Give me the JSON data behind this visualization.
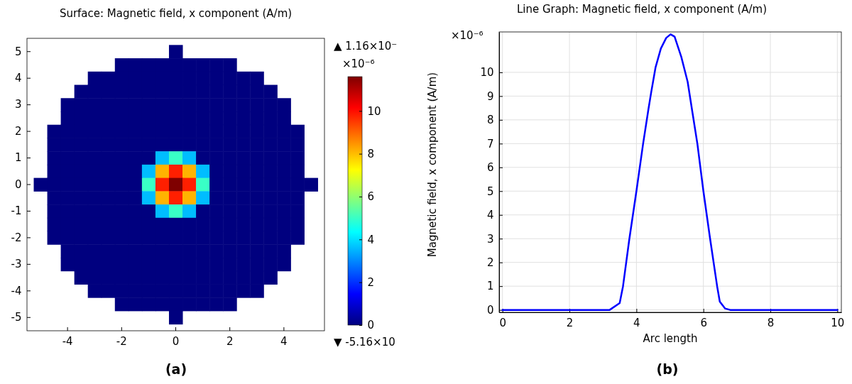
{
  "chart_data": [
    {
      "type": "heatmap",
      "title": "Surface: Magnetic field, x component (A/m)",
      "categories": [
        null,
        null,
        "-4",
        null,
        null,
        null,
        "-2",
        null,
        null,
        null,
        "0",
        null,
        null,
        null,
        "2",
        null,
        null,
        null,
        "4",
        null,
        null
      ],
      "y_categories": [
        "5",
        null,
        "4",
        null,
        "3",
        null,
        "2",
        null,
        "1",
        null,
        "0",
        null,
        "-1",
        null,
        "-2",
        null,
        "-3",
        null,
        "-4",
        null,
        "-5"
      ],
      "cells": [
        [
          null,
          null,
          null,
          null,
          null,
          null,
          null,
          null,
          null,
          null,
          0,
          null,
          null,
          null,
          null,
          null,
          null,
          null,
          null,
          null,
          null
        ],
        [
          null,
          null,
          null,
          null,
          null,
          null,
          0,
          0,
          0,
          0,
          0,
          0,
          0,
          0,
          0,
          null,
          null,
          null,
          null,
          null,
          null
        ],
        [
          null,
          null,
          null,
          null,
          0,
          0,
          0,
          0,
          0,
          0,
          0,
          0,
          0,
          0,
          0,
          0,
          0,
          null,
          null,
          null,
          null
        ],
        [
          null,
          null,
          null,
          0,
          0,
          0,
          0,
          0,
          0,
          0,
          0,
          0,
          0,
          0,
          0,
          0,
          0,
          0,
          null,
          null,
          null
        ],
        [
          null,
          null,
          0,
          0,
          0,
          0,
          0,
          0,
          0,
          0,
          0,
          0,
          0,
          0,
          0,
          0,
          0,
          0,
          0,
          null,
          null
        ],
        [
          null,
          null,
          0,
          0,
          0,
          0,
          0,
          0,
          0,
          0,
          0,
          0,
          0,
          0,
          0,
          0,
          0,
          0,
          0,
          null,
          null
        ],
        [
          null,
          0,
          0,
          0,
          0,
          0,
          0,
          0,
          0,
          0,
          0,
          0,
          0,
          0,
          0,
          0,
          0,
          0,
          0,
          0,
          null
        ],
        [
          null,
          0,
          0,
          0,
          0,
          0,
          0,
          0,
          0,
          0,
          0,
          0,
          0,
          0,
          0,
          0,
          0,
          0,
          0,
          0,
          null
        ],
        [
          null,
          0,
          0,
          0,
          0,
          0,
          0,
          0,
          0,
          3.6,
          5.0,
          3.6,
          0,
          0,
          0,
          0,
          0,
          0,
          0,
          0,
          null
        ],
        [
          null,
          0,
          0,
          0,
          0,
          0,
          0,
          0,
          3.6,
          8.1,
          9.8,
          8.1,
          3.6,
          0,
          0,
          0,
          0,
          0,
          0,
          0,
          null
        ],
        [
          0,
          0,
          0,
          0,
          0,
          0,
          0,
          0,
          5.0,
          9.8,
          11.6,
          9.8,
          5.0,
          0,
          0,
          0,
          0,
          0,
          0,
          0,
          0
        ],
        [
          null,
          0,
          0,
          0,
          0,
          0,
          0,
          0,
          3.6,
          8.1,
          9.8,
          8.1,
          3.6,
          0,
          0,
          0,
          0,
          0,
          0,
          0,
          null
        ],
        [
          null,
          0,
          0,
          0,
          0,
          0,
          0,
          0,
          0,
          3.6,
          5.0,
          3.6,
          0,
          0,
          0,
          0,
          0,
          0,
          0,
          0,
          null
        ],
        [
          null,
          0,
          0,
          0,
          0,
          0,
          0,
          0,
          0,
          0,
          0,
          0,
          0,
          0,
          0,
          0,
          0,
          0,
          0,
          0,
          null
        ],
        [
          null,
          0,
          0,
          0,
          0,
          0,
          0,
          0,
          0,
          0,
          0,
          0,
          0,
          0,
          0,
          0,
          0,
          0,
          0,
          0,
          null
        ],
        [
          null,
          null,
          0,
          0,
          0,
          0,
          0,
          0,
          0,
          0,
          0,
          0,
          0,
          0,
          0,
          0,
          0,
          0,
          0,
          null,
          null
        ],
        [
          null,
          null,
          0,
          0,
          0,
          0,
          0,
          0,
          0,
          0,
          0,
          0,
          0,
          0,
          0,
          0,
          0,
          0,
          0,
          null,
          null
        ],
        [
          null,
          null,
          null,
          0,
          0,
          0,
          0,
          0,
          0,
          0,
          0,
          0,
          0,
          0,
          0,
          0,
          0,
          0,
          null,
          null,
          null
        ],
        [
          null,
          null,
          null,
          null,
          0,
          0,
          0,
          0,
          0,
          0,
          0,
          0,
          0,
          0,
          0,
          0,
          0,
          null,
          null,
          null,
          null
        ],
        [
          null,
          null,
          null,
          null,
          null,
          null,
          0,
          0,
          0,
          0,
          0,
          0,
          0,
          0,
          0,
          null,
          null,
          null,
          null,
          null,
          null
        ],
        [
          null,
          null,
          null,
          null,
          null,
          null,
          null,
          null,
          null,
          null,
          0,
          null,
          null,
          null,
          null,
          null,
          null,
          null,
          null,
          null,
          null
        ]
      ],
      "clim": [
        0,
        11.6
      ],
      "cticks": [
        0,
        2,
        4,
        6,
        8,
        10
      ],
      "annotations": [
        "▲ 1.16×10⁻",
        "×10⁻⁶",
        "▼ -5.16×10",
        "(a)"
      ]
    },
    {
      "type": "line",
      "title": "Line Graph: Magnetic field, x component (A/m)",
      "xlabel": "Arc length",
      "ylabel": "Magnetic field, x component (A/m)",
      "series": [
        {
          "color": "#0000ff",
          "x": [
            0,
            3.2,
            3.5,
            3.6,
            3.79,
            4.0,
            4.2,
            4.36,
            4.44,
            4.57,
            4.73,
            4.89,
            5.02,
            5.14,
            5.34,
            5.53,
            5.67,
            5.82,
            6.0,
            6.2,
            6.41,
            6.49,
            6.65,
            6.8,
            10
          ],
          "values": [
            0,
            0,
            0.29,
            1.0,
            3.0,
            5.0,
            7.0,
            8.46,
            9.15,
            10.2,
            11.0,
            11.45,
            11.6,
            11.5,
            10.65,
            9.6,
            8.34,
            7.0,
            5.0,
            3.0,
            1.0,
            0.35,
            0.06,
            0,
            0
          ]
        }
      ],
      "xlim": [
        -0.1,
        10.12
      ],
      "ylim": [
        -0.1,
        11.7
      ],
      "xticks": [
        0,
        2,
        4,
        6,
        8,
        10
      ],
      "yticks": [
        0,
        1,
        2,
        3,
        4,
        5,
        6,
        7,
        8,
        9,
        10
      ],
      "grid": true,
      "line_style": "solid",
      "annotations": [
        "×10⁻⁶",
        "(b)"
      ]
    }
  ]
}
